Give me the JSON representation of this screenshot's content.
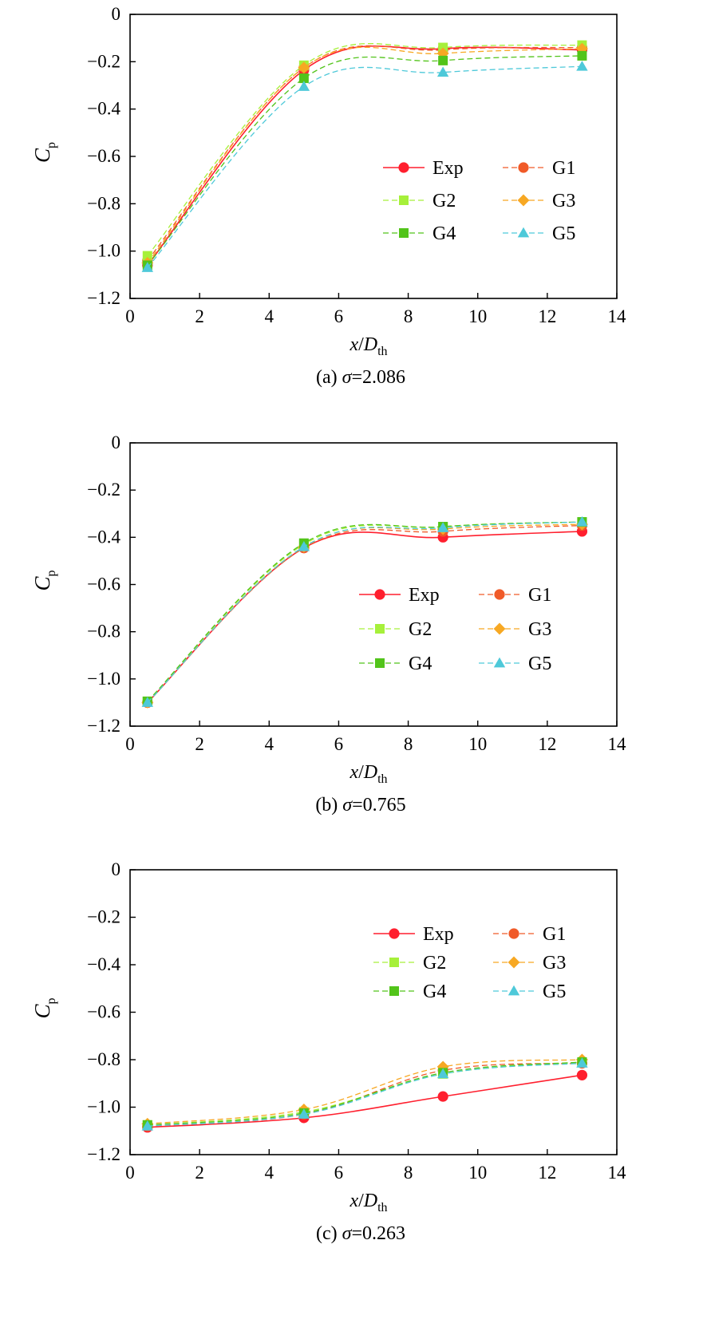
{
  "chart_data": [
    {
      "type": "line",
      "caption": {
        "prefix": "(a) ",
        "symbol": "σ",
        "value": "=2.086"
      },
      "xlabel": {
        "var": "x",
        "sep": "/",
        "base": "D",
        "sub": "th"
      },
      "ylabel": {
        "base": "C",
        "sub": "p"
      },
      "xlim": [
        0,
        14
      ],
      "ylim": [
        -1.2,
        0
      ],
      "x_ticks": [
        "0",
        "2",
        "4",
        "6",
        "8",
        "10",
        "12",
        "14"
      ],
      "y_ticks": [
        "−1.2",
        "−1.0",
        "−0.8",
        "−0.6",
        "−0.4",
        "−0.2",
        "0"
      ],
      "legend_position": "center-right",
      "x": [
        0.5,
        5,
        9,
        13
      ],
      "series": [
        {
          "name": "Exp",
          "marker": "circle",
          "color": "#ff1f2e",
          "dashed": false,
          "values": [
            -1.06,
            -0.235,
            -0.145,
            -0.15
          ]
        },
        {
          "name": "G1",
          "marker": "circle",
          "color": "#f05a28",
          "dashed": true,
          "values": [
            -1.04,
            -0.225,
            -0.15,
            -0.14
          ]
        },
        {
          "name": "G2",
          "marker": "square",
          "color": "#a6f03a",
          "dashed": true,
          "values": [
            -1.02,
            -0.215,
            -0.14,
            -0.13
          ]
        },
        {
          "name": "G3",
          "marker": "diamond",
          "color": "#f7a823",
          "dashed": true,
          "values": [
            -1.05,
            -0.225,
            -0.165,
            -0.145
          ]
        },
        {
          "name": "G4",
          "marker": "square",
          "color": "#52c41a",
          "dashed": true,
          "values": [
            -1.06,
            -0.27,
            -0.195,
            -0.175
          ]
        },
        {
          "name": "G5",
          "marker": "triangle",
          "color": "#4ec9d9",
          "dashed": true,
          "values": [
            -1.07,
            -0.305,
            -0.245,
            -0.22
          ]
        }
      ]
    },
    {
      "type": "line",
      "caption": {
        "prefix": "(b) ",
        "symbol": "σ",
        "value": "=0.765"
      },
      "xlabel": {
        "var": "x",
        "sep": "/",
        "base": "D",
        "sub": "th"
      },
      "ylabel": {
        "base": "C",
        "sub": "p"
      },
      "xlim": [
        0,
        14
      ],
      "ylim": [
        -1.2,
        0
      ],
      "x_ticks": [
        "0",
        "2",
        "4",
        "6",
        "8",
        "10",
        "12",
        "14"
      ],
      "y_ticks": [
        "−1.2",
        "−1.0",
        "−0.8",
        "−0.6",
        "−0.4",
        "−0.2",
        "0"
      ],
      "legend_position": "center-right",
      "x": [
        0.5,
        5,
        9,
        13
      ],
      "series": [
        {
          "name": "Exp",
          "marker": "circle",
          "color": "#ff1f2e",
          "dashed": false,
          "values": [
            -1.1,
            -0.445,
            -0.4,
            -0.375
          ]
        },
        {
          "name": "G1",
          "marker": "circle",
          "color": "#f05a28",
          "dashed": true,
          "values": [
            -1.1,
            -0.445,
            -0.375,
            -0.35
          ]
        },
        {
          "name": "G2",
          "marker": "square",
          "color": "#a6f03a",
          "dashed": true,
          "values": [
            -1.095,
            -0.43,
            -0.355,
            -0.335
          ]
        },
        {
          "name": "G3",
          "marker": "diamond",
          "color": "#f7a823",
          "dashed": true,
          "values": [
            -1.1,
            -0.44,
            -0.365,
            -0.345
          ]
        },
        {
          "name": "G4",
          "marker": "square",
          "color": "#52c41a",
          "dashed": true,
          "values": [
            -1.095,
            -0.425,
            -0.355,
            -0.335
          ]
        },
        {
          "name": "G5",
          "marker": "triangle",
          "color": "#4ec9d9",
          "dashed": true,
          "values": [
            -1.1,
            -0.44,
            -0.36,
            -0.335
          ]
        }
      ]
    },
    {
      "type": "line",
      "caption": {
        "prefix": "(c) ",
        "symbol": "σ",
        "value": "=0.263"
      },
      "xlabel": {
        "var": "x",
        "sep": "/",
        "base": "D",
        "sub": "th"
      },
      "ylabel": {
        "base": "C",
        "sub": "p"
      },
      "xlim": [
        0,
        14
      ],
      "ylim": [
        -1.2,
        0
      ],
      "x_ticks": [
        "0",
        "2",
        "4",
        "6",
        "8",
        "10",
        "12",
        "14"
      ],
      "y_ticks": [
        "−1.2",
        "−1.0",
        "−0.8",
        "−0.6",
        "−0.4",
        "−0.2",
        "0"
      ],
      "legend_position": "top-right",
      "x": [
        0.5,
        5,
        9,
        13
      ],
      "series": [
        {
          "name": "Exp",
          "marker": "circle",
          "color": "#ff1f2e",
          "dashed": false,
          "values": [
            -1.085,
            -1.045,
            -0.955,
            -0.865
          ]
        },
        {
          "name": "G1",
          "marker": "circle",
          "color": "#f05a28",
          "dashed": true,
          "values": [
            -1.08,
            -1.03,
            -0.845,
            -0.815
          ]
        },
        {
          "name": "G2",
          "marker": "square",
          "color": "#a6f03a",
          "dashed": true,
          "values": [
            -1.075,
            -1.02,
            -0.86,
            -0.81
          ]
        },
        {
          "name": "G3",
          "marker": "diamond",
          "color": "#f7a823",
          "dashed": true,
          "values": [
            -1.07,
            -1.01,
            -0.83,
            -0.8
          ]
        },
        {
          "name": "G4",
          "marker": "square",
          "color": "#52c41a",
          "dashed": true,
          "values": [
            -1.075,
            -1.025,
            -0.855,
            -0.81
          ]
        },
        {
          "name": "G5",
          "marker": "triangle",
          "color": "#4ec9d9",
          "dashed": true,
          "values": [
            -1.08,
            -1.03,
            -0.86,
            -0.815
          ]
        }
      ]
    }
  ]
}
